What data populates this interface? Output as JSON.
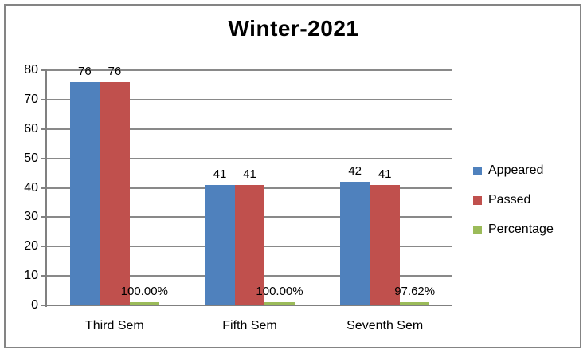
{
  "chart_data": {
    "type": "bar",
    "title": "Winter-2021",
    "categories": [
      "Third Sem",
      "Fifth Sem",
      "Seventh Sem"
    ],
    "series": [
      {
        "name": "Appeared",
        "color": "#4F81BD",
        "values": [
          76,
          41,
          42
        ],
        "labels": [
          "76",
          "41",
          "42"
        ]
      },
      {
        "name": "Passed",
        "color": "#C0504D",
        "values": [
          76,
          41,
          41
        ],
        "labels": [
          "76",
          "41",
          "41"
        ]
      },
      {
        "name": "Percentage",
        "color": "#9BBB59",
        "values": [
          1.0,
          1.0,
          0.9762
        ],
        "labels": [
          "100.00%",
          "100.00%",
          "97.62%"
        ]
      }
    ],
    "ylim": [
      0,
      80
    ],
    "yticks": [
      0,
      10,
      20,
      30,
      40,
      50,
      60,
      70,
      80
    ],
    "grid": true,
    "legend_position": "right",
    "colors": {
      "gridline": "#898989",
      "axis": "#808080",
      "border": "#848484",
      "label_text": "#000000",
      "background": "#ffffff"
    }
  }
}
